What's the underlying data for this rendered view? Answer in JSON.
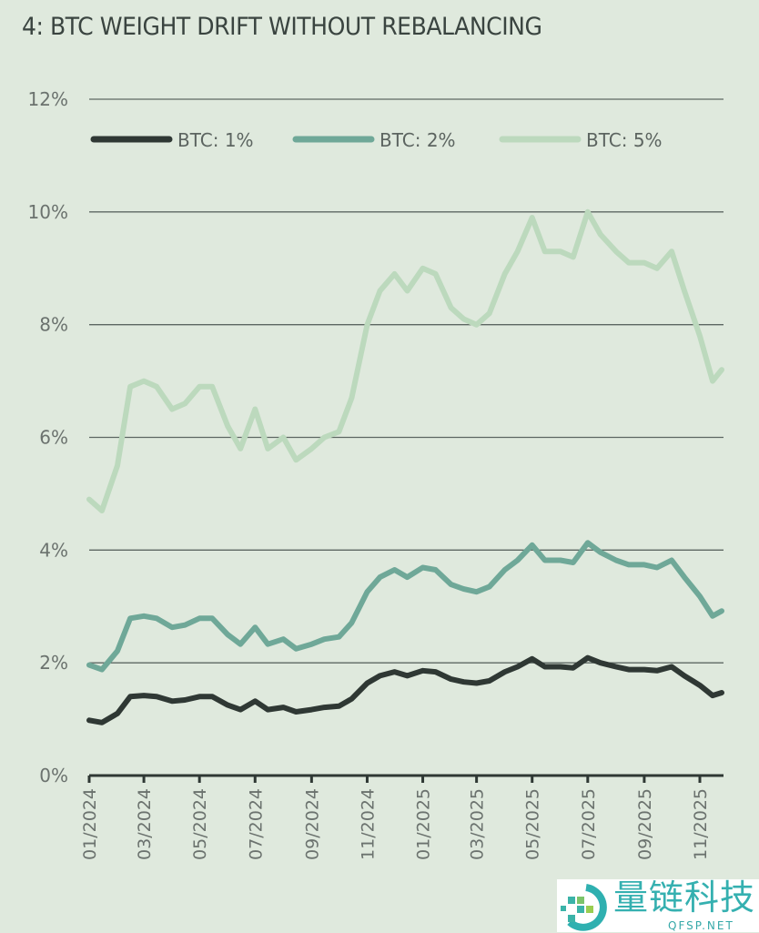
{
  "chart_data": {
    "type": "line",
    "title": "4: BTC WEIGHT DRIFT WITHOUT REBALANCING",
    "xlabel": "",
    "ylabel": "",
    "ylim": [
      0,
      12
    ],
    "y_ticks": [
      "0%",
      "2%",
      "4%",
      "6%",
      "8%",
      "10%",
      "12%"
    ],
    "y_tick_values": [
      0,
      2,
      4,
      6,
      8,
      10,
      12
    ],
    "x_ticks": [
      "01/2024",
      "03/2024",
      "05/2024",
      "07/2024",
      "09/2024",
      "11/2024",
      "01/2025",
      "03/2025",
      "05/2025",
      "07/2025",
      "09/2025",
      "11/2025"
    ],
    "x_tick_dates": [
      "2024-01-01",
      "2024-03-01",
      "2024-05-01",
      "2024-07-01",
      "2024-09-01",
      "2024-11-01",
      "2025-01-01",
      "2025-03-01",
      "2025-05-01",
      "2025-07-01",
      "2025-09-01",
      "2025-11-01"
    ],
    "xlim": [
      "2024-01-01",
      "2025-11-28"
    ],
    "grid": "horizontal",
    "legend_position": "top",
    "x": [
      "2024-01-01",
      "2024-01-15",
      "2024-02-01",
      "2024-02-15",
      "2024-03-01",
      "2024-03-15",
      "2024-04-01",
      "2024-04-15",
      "2024-05-01",
      "2024-05-15",
      "2024-06-01",
      "2024-06-15",
      "2024-07-01",
      "2024-07-15",
      "2024-08-01",
      "2024-08-15",
      "2024-09-01",
      "2024-09-15",
      "2024-10-01",
      "2024-10-15",
      "2024-11-01",
      "2024-11-15",
      "2024-12-01",
      "2024-12-15",
      "2025-01-01",
      "2025-01-15",
      "2025-02-01",
      "2025-02-15",
      "2025-03-01",
      "2025-03-15",
      "2025-04-01",
      "2025-04-15",
      "2025-05-01",
      "2025-05-15",
      "2025-06-01",
      "2025-06-15",
      "2025-07-01",
      "2025-07-15",
      "2025-08-01",
      "2025-08-15",
      "2025-09-01",
      "2025-09-15",
      "2025-10-01",
      "2025-10-15",
      "2025-11-01",
      "2025-11-15",
      "2025-11-25"
    ],
    "series": [
      {
        "name": "BTC: 1%",
        "color": "#2f3834",
        "values": [
          0.98,
          0.94,
          1.1,
          1.4,
          1.42,
          1.4,
          1.32,
          1.34,
          1.4,
          1.4,
          1.25,
          1.17,
          1.32,
          1.17,
          1.21,
          1.13,
          1.17,
          1.21,
          1.23,
          1.36,
          1.64,
          1.77,
          1.84,
          1.77,
          1.86,
          1.84,
          1.71,
          1.66,
          1.64,
          1.68,
          1.84,
          1.93,
          2.07,
          1.93,
          1.93,
          1.91,
          2.09,
          2.0,
          1.93,
          1.88,
          1.88,
          1.86,
          1.93,
          1.77,
          1.6,
          1.42,
          1.47
        ]
      },
      {
        "name": "BTC: 2%",
        "color": "#6fa898",
        "values": [
          1.96,
          1.88,
          2.21,
          2.79,
          2.83,
          2.79,
          2.63,
          2.67,
          2.79,
          2.79,
          2.5,
          2.33,
          2.63,
          2.33,
          2.42,
          2.25,
          2.33,
          2.42,
          2.46,
          2.71,
          3.26,
          3.52,
          3.65,
          3.52,
          3.69,
          3.65,
          3.39,
          3.31,
          3.26,
          3.35,
          3.65,
          3.82,
          4.09,
          3.82,
          3.82,
          3.78,
          4.13,
          3.96,
          3.82,
          3.74,
          3.74,
          3.69,
          3.82,
          3.52,
          3.18,
          2.83,
          2.92
        ]
      },
      {
        "name": "BTC: 5%",
        "color": "#bcd9bd",
        "values": [
          4.9,
          4.7,
          5.5,
          6.9,
          7.0,
          6.9,
          6.5,
          6.6,
          6.9,
          6.9,
          6.2,
          5.8,
          6.5,
          5.8,
          6.0,
          5.6,
          5.8,
          6.0,
          6.1,
          6.7,
          8.0,
          8.6,
          8.9,
          8.6,
          9.0,
          8.9,
          8.3,
          8.1,
          8.0,
          8.2,
          8.9,
          9.3,
          9.9,
          9.3,
          9.3,
          9.2,
          10.0,
          9.6,
          9.3,
          9.1,
          9.1,
          9.0,
          9.3,
          8.6,
          7.8,
          7.0,
          7.2
        ]
      }
    ]
  },
  "watermark": {
    "brand": "量链科技",
    "site": "QFSP.NET"
  }
}
